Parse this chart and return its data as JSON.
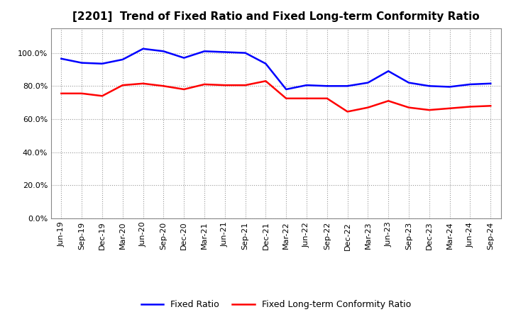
{
  "title": "[2201]  Trend of Fixed Ratio and Fixed Long-term Conformity Ratio",
  "x_labels": [
    "Jun-19",
    "Sep-19",
    "Dec-19",
    "Mar-20",
    "Jun-20",
    "Sep-20",
    "Dec-20",
    "Mar-21",
    "Jun-21",
    "Sep-21",
    "Dec-21",
    "Mar-22",
    "Jun-22",
    "Sep-22",
    "Dec-22",
    "Mar-23",
    "Jun-23",
    "Sep-23",
    "Dec-23",
    "Mar-24",
    "Jun-24",
    "Sep-24"
  ],
  "fixed_ratio": [
    96.5,
    94.0,
    93.5,
    96.0,
    102.5,
    101.0,
    97.0,
    101.0,
    100.5,
    100.0,
    93.5,
    78.0,
    80.5,
    80.0,
    80.0,
    82.0,
    89.0,
    82.0,
    80.0,
    79.5,
    81.0,
    81.5
  ],
  "fixed_lt_ratio": [
    75.5,
    75.5,
    74.0,
    80.5,
    81.5,
    80.0,
    78.0,
    81.0,
    80.5,
    80.5,
    83.0,
    72.5,
    72.5,
    72.5,
    64.5,
    67.0,
    71.0,
    67.0,
    65.5,
    66.5,
    67.5,
    68.0
  ],
  "fixed_ratio_color": "#0000FF",
  "fixed_lt_ratio_color": "#FF0000",
  "background_color": "#FFFFFF",
  "plot_bg_color": "#FFFFFF",
  "grid_color": "#999999",
  "legend_fixed_ratio": "Fixed Ratio",
  "legend_fixed_lt_ratio": "Fixed Long-term Conformity Ratio"
}
